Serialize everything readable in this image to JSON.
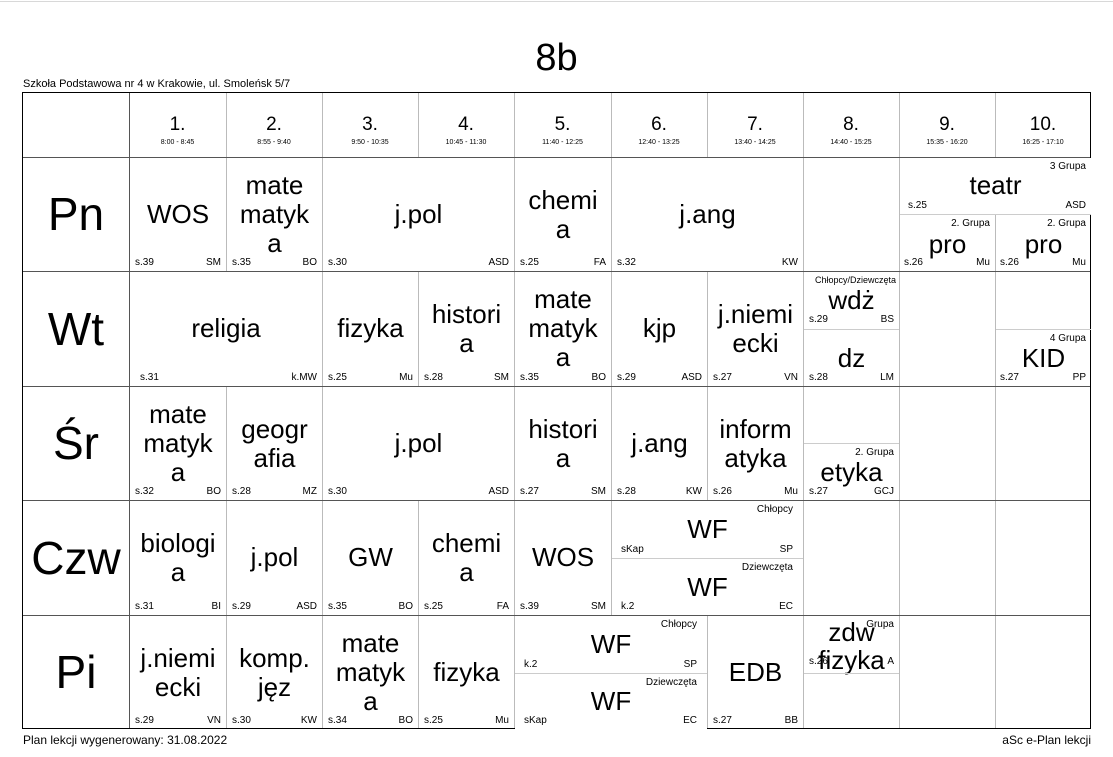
{
  "title": "8b",
  "school": "Szkoła Podstawowa nr 4 w Krakowie, ul. Smoleńsk 5/7",
  "footer": {
    "generated": "Plan lekcji wygenerowany: 31.08.2022",
    "app": "aSc e-Plan lekcji"
  },
  "periods": [
    {
      "num": "1.",
      "time": "8:00 - 8:45"
    },
    {
      "num": "2.",
      "time": "8:55 - 9:40"
    },
    {
      "num": "3.",
      "time": "9:50 - 10:35"
    },
    {
      "num": "4.",
      "time": "10:45 - 11:30"
    },
    {
      "num": "5.",
      "time": "11:40 - 12:25"
    },
    {
      "num": "6.",
      "time": "12:40 - 13:25"
    },
    {
      "num": "7.",
      "time": "13:40 - 14:25"
    },
    {
      "num": "8.",
      "time": "14:40 - 15:25"
    },
    {
      "num": "9.",
      "time": "15:35 - 16:20"
    },
    {
      "num": "10.",
      "time": "16:25 - 17:10"
    }
  ],
  "days": [
    "Pn",
    "Wt",
    "Śr",
    "Czw",
    "Pi"
  ],
  "lessons": {
    "pn_1": {
      "subj": "WOS",
      "room": "s.39",
      "teacher": "SM"
    },
    "pn_2": {
      "subj": "mate matyk a",
      "room": "s.35",
      "teacher": "BO"
    },
    "pn_3": {
      "subj": "j.pol",
      "room": "s.30",
      "teacher": "ASD"
    },
    "pn_5": {
      "subj": "chemi a",
      "room": "s.25",
      "teacher": "FA"
    },
    "pn_6": {
      "subj": "j.ang",
      "room": "s.32",
      "teacher": "KW"
    },
    "pn_9a": {
      "subj": "teatr",
      "room": "s.25",
      "teacher": "ASD",
      "group": "3 Grupa"
    },
    "pn_9b": {
      "subj": "pro",
      "room": "s.26",
      "teacher": "Mu",
      "group": "2. Grupa"
    },
    "pn_10b": {
      "subj": "pro",
      "room": "s.26",
      "teacher": "Mu",
      "group": "2. Grupa"
    },
    "wt_1": {
      "subj": "religia",
      "room": "s.31",
      "teacher": "k.MW"
    },
    "wt_3": {
      "subj": "fizyka",
      "room": "s.25",
      "teacher": "Mu"
    },
    "wt_4": {
      "subj": "histori a",
      "room": "s.28",
      "teacher": "SM"
    },
    "wt_5": {
      "subj": "mate matyk a",
      "room": "s.35",
      "teacher": "BO"
    },
    "wt_6": {
      "subj": "kjp",
      "room": "s.29",
      "teacher": "ASD"
    },
    "wt_7": {
      "subj": "j.niemi ecki",
      "room": "s.27",
      "teacher": "VN"
    },
    "wt_8a": {
      "subj": "wdż",
      "room": "s.29",
      "teacher": "BS",
      "group": "Chłopcy/Dziewczęta"
    },
    "wt_8b": {
      "subj": "dz",
      "room": "s.28",
      "teacher": "LM"
    },
    "wt_10": {
      "subj": "KID",
      "room": "s.27",
      "teacher": "PP",
      "group": "4 Grupa"
    },
    "sr_1": {
      "subj": "mate matyk a",
      "room": "s.32",
      "teacher": "BO"
    },
    "sr_2": {
      "subj": "geogr afia",
      "room": "s.28",
      "teacher": "MZ"
    },
    "sr_3": {
      "subj": "j.pol",
      "room": "s.30",
      "teacher": "ASD"
    },
    "sr_5": {
      "subj": "histori a",
      "room": "s.27",
      "teacher": "SM"
    },
    "sr_6": {
      "subj": "j.ang",
      "room": "s.28",
      "teacher": "KW"
    },
    "sr_7": {
      "subj": "inform atyka",
      "room": "s.26",
      "teacher": "Mu"
    },
    "sr_8": {
      "subj": "etyka",
      "room": "s.27",
      "teacher": "GCJ",
      "group": "2. Grupa"
    },
    "czw_1": {
      "subj": "biologi a",
      "room": "s.31",
      "teacher": "BI"
    },
    "czw_2": {
      "subj": "j.pol",
      "room": "s.29",
      "teacher": "ASD"
    },
    "czw_3": {
      "subj": "GW",
      "room": "s.35",
      "teacher": "BO"
    },
    "czw_4": {
      "subj": "chemi a",
      "room": "s.25",
      "teacher": "FA"
    },
    "czw_5": {
      "subj": "WOS",
      "room": "s.39",
      "teacher": "SM"
    },
    "czw_6a": {
      "subj": "WF",
      "room": "sKap",
      "teacher": "SP",
      "group": "Chłopcy"
    },
    "czw_6b": {
      "subj": "WF",
      "room": "k.2",
      "teacher": "EC",
      "group": "Dziewczęta"
    },
    "pi_1": {
      "subj": "j.niemi ecki",
      "room": "s.29",
      "teacher": "VN"
    },
    "pi_2": {
      "subj": "komp. jęz",
      "room": "s.30",
      "teacher": "KW"
    },
    "pi_3": {
      "subj": "mate matyk a",
      "room": "s.34",
      "teacher": "BO"
    },
    "pi_4": {
      "subj": "fizyka",
      "room": "s.25",
      "teacher": "Mu"
    },
    "pi_5a": {
      "subj": "WF",
      "room": "k.2",
      "teacher": "SP",
      "group": "Chłopcy"
    },
    "pi_5b": {
      "subj": "WF",
      "room": "sKap",
      "teacher": "EC",
      "group": "Dziewczęta"
    },
    "pi_7": {
      "subj": "EDB",
      "room": "s.27",
      "teacher": "BB"
    },
    "pi_8": {
      "subj": "zdw fizyka",
      "room": "s.26",
      "teacher": "A",
      "group": "Grupa"
    }
  }
}
